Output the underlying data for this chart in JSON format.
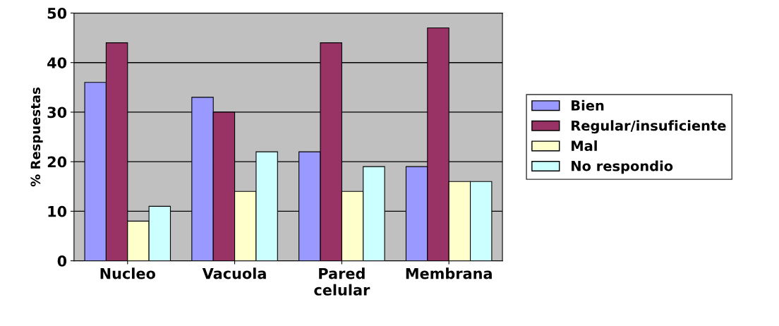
{
  "chart_data": {
    "type": "bar",
    "ylabel": "% Respuestas",
    "categories": [
      "Nucleo",
      "Vacuola",
      "Pared\ncelular",
      "Membrana"
    ],
    "series": [
      {
        "name": "Bien",
        "color": "#9999ff",
        "values": [
          36,
          33,
          22,
          19
        ]
      },
      {
        "name": "Regular/insuficiente",
        "color": "#993366",
        "values": [
          44,
          30,
          44,
          47
        ]
      },
      {
        "name": "Mal",
        "color": "#ffffcc",
        "values": [
          8,
          14,
          14,
          16
        ]
      },
      {
        "name": "No respondio",
        "color": "#ccffff",
        "values": [
          11,
          22,
          19,
          16
        ]
      }
    ],
    "ylim": [
      0,
      50
    ],
    "yticks": [
      0,
      10,
      20,
      30,
      40,
      50
    ],
    "grid": "y",
    "legend": "right"
  }
}
